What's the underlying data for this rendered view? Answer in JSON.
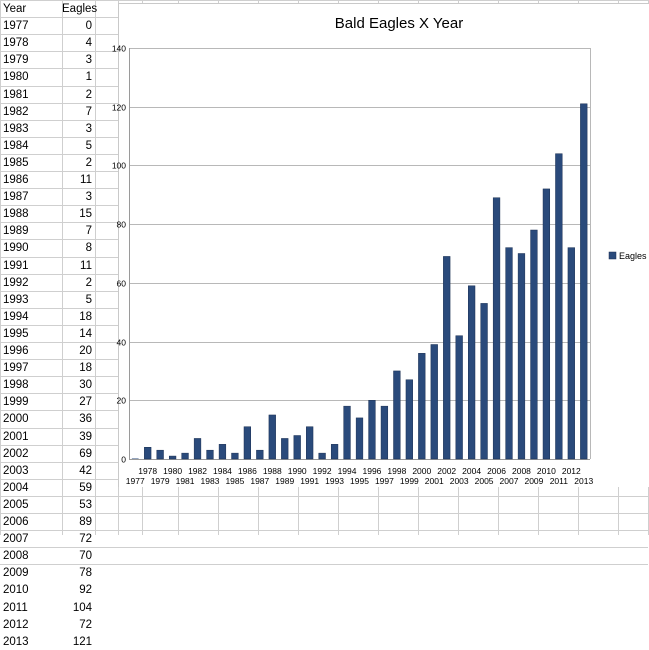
{
  "table": {
    "headers": [
      "Year",
      "Eagles"
    ],
    "rows": [
      [
        "1977",
        "0"
      ],
      [
        "1978",
        "4"
      ],
      [
        "1979",
        "3"
      ],
      [
        "1980",
        "1"
      ],
      [
        "1981",
        "2"
      ],
      [
        "1982",
        "7"
      ],
      [
        "1983",
        "3"
      ],
      [
        "1984",
        "5"
      ],
      [
        "1985",
        "2"
      ],
      [
        "1986",
        "11"
      ],
      [
        "1987",
        "3"
      ],
      [
        "1988",
        "15"
      ],
      [
        "1989",
        "7"
      ],
      [
        "1990",
        "8"
      ],
      [
        "1991",
        "11"
      ],
      [
        "1992",
        "2"
      ],
      [
        "1993",
        "5"
      ],
      [
        "1994",
        "18"
      ],
      [
        "1995",
        "14"
      ],
      [
        "1996",
        "20"
      ],
      [
        "1997",
        "18"
      ],
      [
        "1998",
        "30"
      ],
      [
        "1999",
        "27"
      ],
      [
        "2000",
        "36"
      ],
      [
        "2001",
        "39"
      ],
      [
        "2002",
        "69"
      ],
      [
        "2003",
        "42"
      ],
      [
        "2004",
        "59"
      ],
      [
        "2005",
        "53"
      ],
      [
        "2006",
        "89"
      ],
      [
        "2007",
        "72"
      ],
      [
        "2008",
        "70"
      ],
      [
        "2009",
        "78"
      ],
      [
        "2010",
        "92"
      ],
      [
        "2011",
        "104"
      ],
      [
        "2012",
        "72"
      ],
      [
        "2013",
        "121"
      ]
    ]
  },
  "chart_data": {
    "type": "bar",
    "title": "Bald Eagles X Year",
    "xlabel": "",
    "ylabel": "",
    "categories": [
      "1977",
      "1978",
      "1979",
      "1980",
      "1981",
      "1982",
      "1983",
      "1984",
      "1985",
      "1986",
      "1987",
      "1988",
      "1989",
      "1990",
      "1991",
      "1992",
      "1993",
      "1994",
      "1995",
      "1996",
      "1997",
      "1998",
      "1999",
      "2000",
      "2001",
      "2002",
      "2003",
      "2004",
      "2005",
      "2006",
      "2007",
      "2008",
      "2009",
      "2010",
      "2011",
      "2012",
      "2013"
    ],
    "series": [
      {
        "name": "Eagles",
        "values": [
          0,
          4,
          3,
          1,
          2,
          7,
          3,
          5,
          2,
          11,
          3,
          15,
          7,
          8,
          11,
          2,
          5,
          18,
          14,
          20,
          18,
          30,
          27,
          36,
          39,
          69,
          42,
          59,
          53,
          89,
          72,
          70,
          78,
          92,
          104,
          72,
          121
        ]
      }
    ],
    "ylim": [
      0,
      140
    ],
    "yticks": [
      0,
      20,
      40,
      60,
      80,
      100,
      120,
      140
    ],
    "grid": true,
    "legend": "right",
    "colors": {
      "bar": "#2a4a7b",
      "bar_edge": "#1a2f52",
      "grid": "#b8b8b8"
    }
  }
}
